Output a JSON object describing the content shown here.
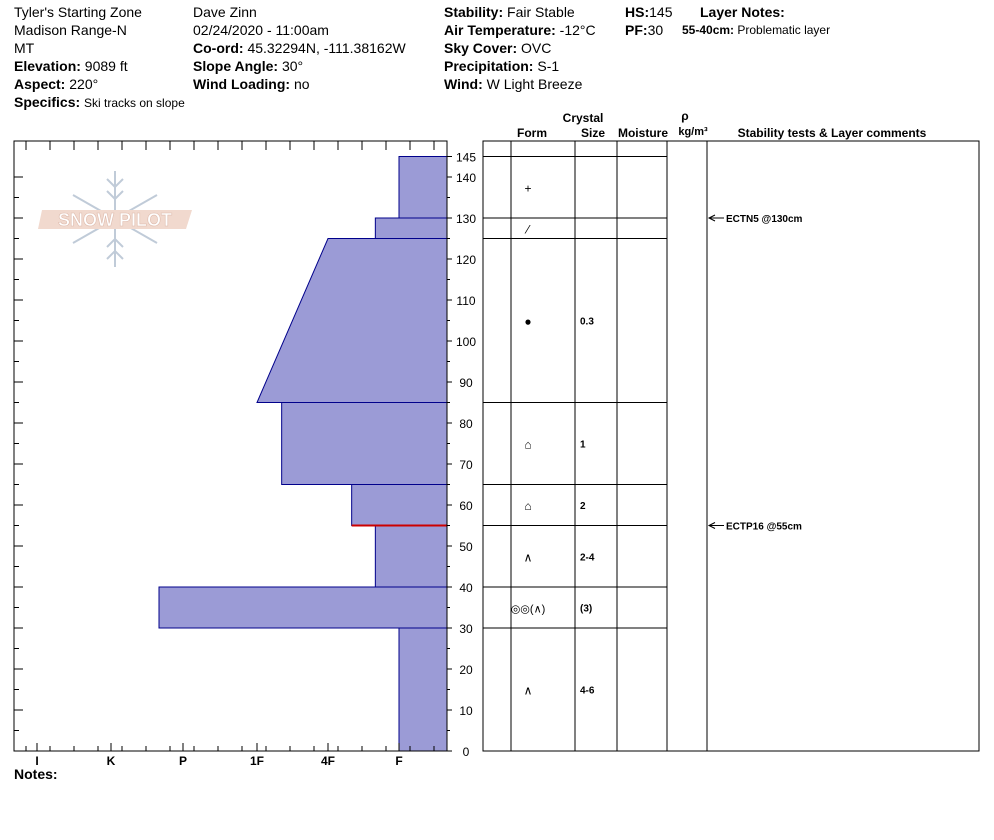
{
  "header": {
    "location": "Tyler's Starting Zone",
    "range": "Madison Range-N",
    "state": "MT",
    "elevation_label": "Elevation:",
    "elevation": "9089 ft",
    "aspect_label": "Aspect:",
    "aspect": "220°",
    "specifics_label": "Specifics:",
    "specifics": "Ski tracks on slope",
    "observer": "Dave Zinn",
    "datetime": "02/24/2020 - 11:00am",
    "coord_label": "Co-ord:",
    "coord": "45.32294N, -111.38162W",
    "slope_label": "Slope Angle:",
    "slope": "30°",
    "wind_loading_label": "Wind Loading:",
    "wind_loading": "no",
    "stability_label": "Stability:",
    "stability": "Fair Stable",
    "air_temp_label": "Air Temperature:",
    "air_temp": "-12°C",
    "sky_label": "Sky Cover:",
    "sky": "OVC",
    "precip_label": "Precipitation:",
    "precip": "S-1",
    "wind_label": "Wind:",
    "wind": "W Light Breeze",
    "hs_label": "HS:",
    "hs": "145",
    "pf_label": "PF:",
    "pf": "30",
    "layer_notes_label": "Layer Notes:",
    "layer_note_depth": "55-40cm:",
    "layer_note_text": "Problematic layer"
  },
  "logo": {
    "text": "SNOW PILOT"
  },
  "notes_label": "Notes:",
  "columns": {
    "crystal": "Crystal",
    "form": "Form",
    "size": "Size",
    "moisture": "Moisture",
    "rho": "ρ",
    "density_unit": "kg/m³",
    "comments": "Stability tests & Layer comments"
  },
  "colors": {
    "fill": "#9b9bd6",
    "stroke": "#00008b",
    "weak_layer": "#cc0000"
  },
  "chart_data": {
    "type": "bar",
    "orientation": "horizontal",
    "y_unit": "cm",
    "ylim": [
      0,
      145
    ],
    "hs_tick": 145,
    "y_ticks": [
      0,
      10,
      20,
      30,
      40,
      50,
      60,
      70,
      80,
      90,
      100,
      110,
      120,
      130,
      140
    ],
    "hardness_scale": [
      "I",
      "K",
      "P",
      "1F",
      "4F",
      "F"
    ],
    "layers": [
      {
        "top": 145,
        "bottom": 130,
        "hardness_top": "F",
        "hardness_bottom": "F",
        "form": "+",
        "size": ""
      },
      {
        "top": 130,
        "bottom": 125,
        "hardness_top": "F+",
        "hardness_bottom": "F+",
        "form": "⁄",
        "size": ""
      },
      {
        "top": 125,
        "bottom": 85,
        "hardness_top": "4F",
        "hardness_bottom": "1F",
        "form": "●",
        "size": "0.3"
      },
      {
        "top": 85,
        "bottom": 65,
        "hardness_top": "1F-",
        "hardness_bottom": "1F-",
        "form": "⌂",
        "size": "1"
      },
      {
        "top": 65,
        "bottom": 55,
        "hardness_top": "4F-",
        "hardness_bottom": "4F-",
        "form": "⌂",
        "size": "2"
      },
      {
        "top": 55,
        "bottom": 40,
        "hardness_top": "F+",
        "hardness_bottom": "F+",
        "form": "∧",
        "size": "2-4"
      },
      {
        "top": 40,
        "bottom": 30,
        "hardness_top": "P+",
        "hardness_bottom": "P+",
        "form": "◎◎(∧)",
        "size": "(3)"
      },
      {
        "top": 30,
        "bottom": 0,
        "hardness_top": "F",
        "hardness_bottom": "F",
        "form": "∧",
        "size": "4-6"
      }
    ],
    "weak_layer_depth": 55,
    "stability_tests": [
      {
        "depth": 130,
        "label": "ECTN5 @130cm"
      },
      {
        "depth": 55,
        "label": "ECTP16 @55cm"
      }
    ]
  }
}
